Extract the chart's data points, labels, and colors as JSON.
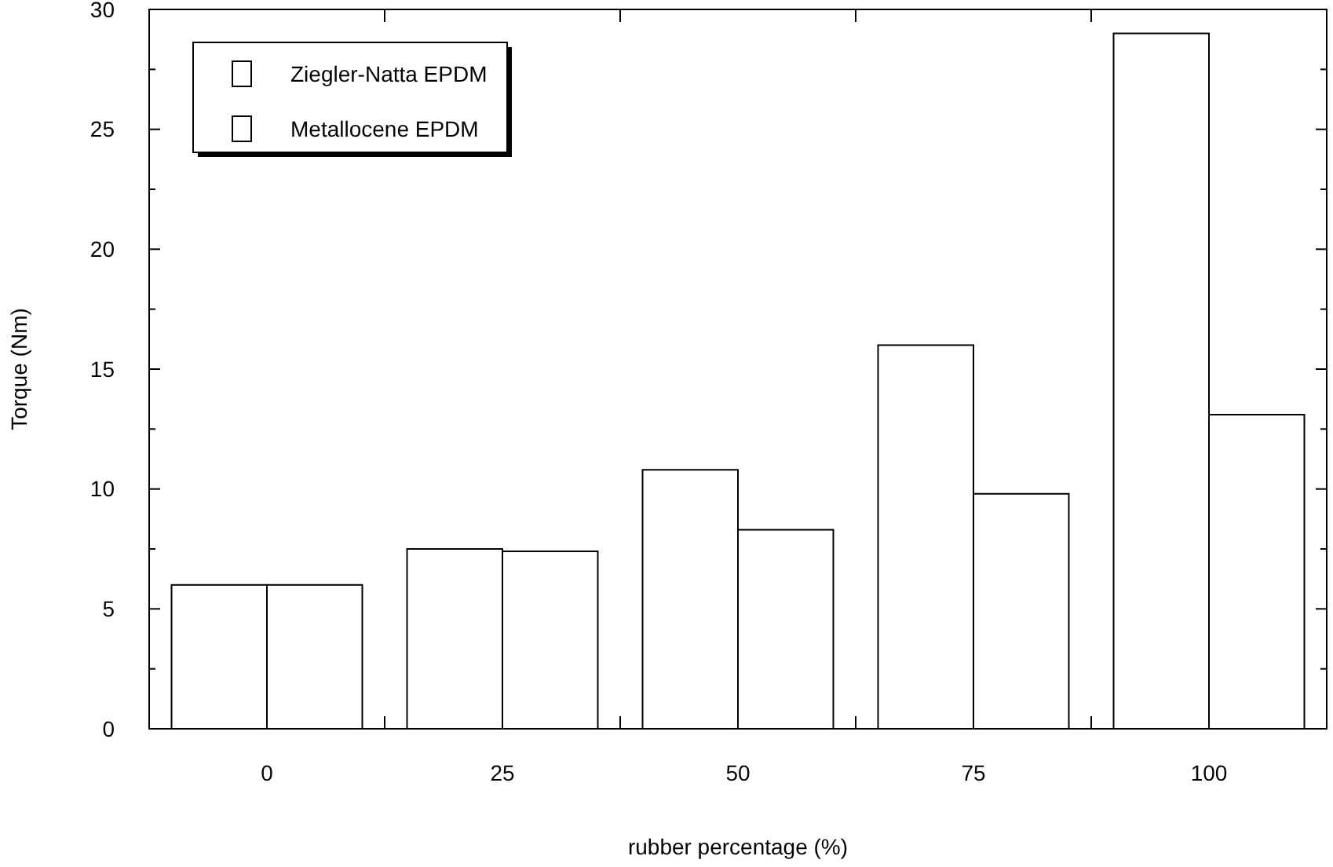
{
  "chart_data": {
    "type": "bar",
    "xlabel": "rubber percentage (%)",
    "ylabel": "Torque (Nm)",
    "categories": [
      "0",
      "25",
      "50",
      "75",
      "100"
    ],
    "series": [
      {
        "name": "Ziegler-Natta EPDM",
        "color": "#ffffff",
        "values": [
          6.0,
          7.5,
          10.8,
          16.0,
          29.0
        ]
      },
      {
        "name": "Metallocene EPDM",
        "color": "#ffffff",
        "values": [
          6.0,
          7.4,
          8.3,
          9.8,
          13.1
        ]
      }
    ],
    "ylim": [
      0,
      30
    ],
    "yticks": [
      0,
      {
        "value": 2.5,
        "label": null
      },
      5,
      {
        "value": 7.5,
        "label": null
      },
      10,
      {
        "value": 12.5,
        "label": null
      },
      15,
      {
        "value": 17.5,
        "label": null
      },
      20,
      {
        "value": 22.5,
        "label": null
      },
      25,
      {
        "value": 27.5,
        "label": null
      },
      30
    ],
    "grid": false,
    "legend": "top left"
  }
}
